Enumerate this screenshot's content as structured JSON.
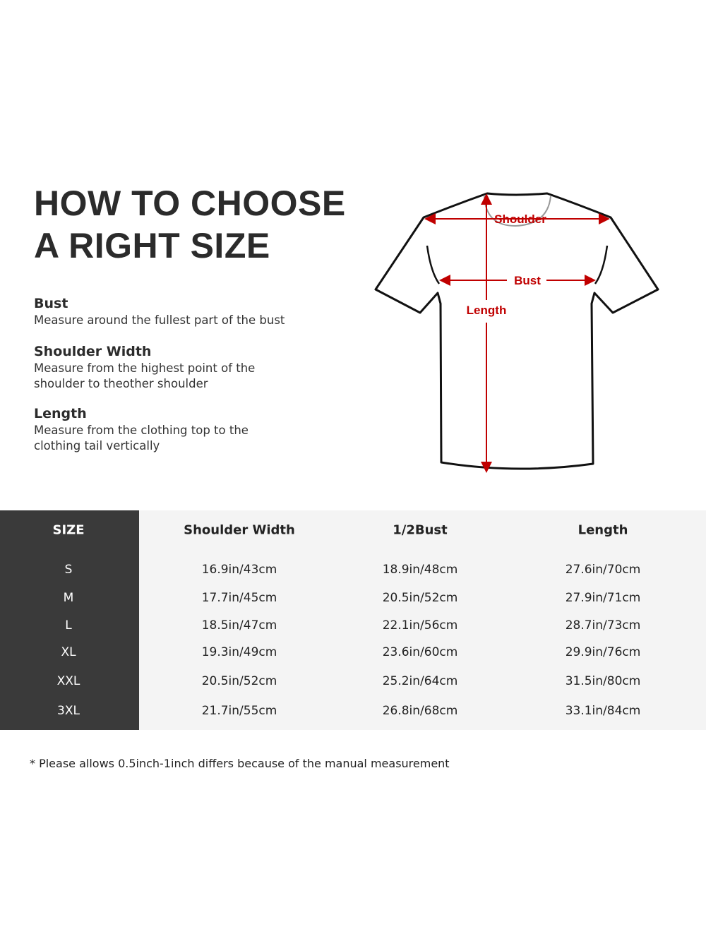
{
  "title_lines": [
    "HOW TO CHOOSE",
    "A RIGHT SIZE"
  ],
  "definitions": [
    {
      "term": "Bust",
      "text": "Measure around the fullest part of the bust"
    },
    {
      "term": "Shoulder Width",
      "text": "Measure from the highest point of the shoulder to theother shoulder"
    },
    {
      "term": "Length",
      "text": "Measure from the clothing top to the clothing tail vertically"
    }
  ],
  "diagram": {
    "labels": {
      "shoulder": "Shoulder",
      "bust": "Bust",
      "length": "Length"
    },
    "accent_color": "#c00000"
  },
  "table": {
    "headers": [
      "SIZE",
      "Shoulder Width",
      "1/2Bust",
      "Length"
    ],
    "rows": [
      [
        "S",
        "16.9in/43cm",
        "18.9in/48cm",
        "27.6in/70cm"
      ],
      [
        "M",
        "17.7in/45cm",
        "20.5in/52cm",
        "27.9in/71cm"
      ],
      [
        "L",
        "18.5in/47cm",
        "22.1in/56cm",
        "28.7in/73cm"
      ],
      [
        "XL",
        "19.3in/49cm",
        "23.6in/60cm",
        "29.9in/76cm"
      ],
      [
        "XXL",
        "20.5in/52cm",
        "25.2in/64cm",
        "31.5in/80cm"
      ],
      [
        "3XL",
        "21.7in/55cm",
        "26.8in/68cm",
        "33.1in/84cm"
      ]
    ]
  },
  "note": "* Please allows 0.5inch-1inch differs because of the  manual measurement"
}
